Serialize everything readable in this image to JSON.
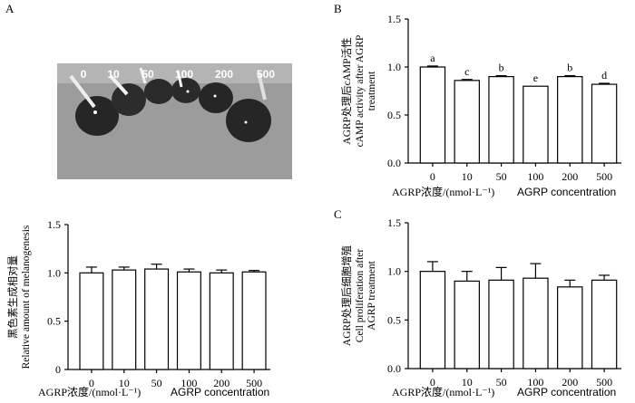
{
  "panel_labels": [
    "A",
    "B",
    "C"
  ],
  "photo": {
    "tube_labels": [
      "0",
      "10",
      "50",
      "100",
      "200",
      "500"
    ],
    "colors": {
      "background": "#9c9c9c",
      "tube_dark": "#222222",
      "tube_rim": "#e8e8e8"
    }
  },
  "chart_data": [
    {
      "id": "A",
      "type": "bar",
      "title": "",
      "ylabel_cn": "黑色素生成相对量",
      "ylabel_en": "Relative amount of melanogenesis",
      "xlabel_cn": "AGRP浓度/(nmol·L⁻¹)",
      "xlabel_en": "AGRP concentration",
      "categories": [
        "0",
        "10",
        "50",
        "100",
        "200",
        "500"
      ],
      "values": [
        1.0,
        1.03,
        1.04,
        1.01,
        1.0,
        1.01
      ],
      "errors": [
        0.06,
        0.03,
        0.05,
        0.03,
        0.03,
        0.015
      ],
      "letters": [],
      "ylim": [
        0,
        1.5
      ],
      "yticks": [
        "0",
        "0.5",
        "1.0",
        "1.5"
      ],
      "grid": false
    },
    {
      "id": "B",
      "type": "bar",
      "title": "",
      "ylabel_cn": "AGRP处理后cAMP活性",
      "ylabel_en": "cAMP activity after AGRP",
      "ylabel_en2": "treatment",
      "xlabel_cn": "AGRP浓度/(nmol·L⁻¹)",
      "xlabel_en": "AGRP concentration",
      "categories": [
        "0",
        "10",
        "50",
        "100",
        "200",
        "500"
      ],
      "values": [
        1.0,
        0.86,
        0.9,
        0.8,
        0.9,
        0.82
      ],
      "errors": [
        0.01,
        0.01,
        0.01,
        0.0,
        0.01,
        0.01
      ],
      "letters": [
        "a",
        "c",
        "b",
        "e",
        "b",
        "d"
      ],
      "ylim": [
        0,
        1.5
      ],
      "yticks": [
        "0.0",
        "0.5",
        "1.0",
        "1.5"
      ],
      "grid": false
    },
    {
      "id": "C",
      "type": "bar",
      "title": "",
      "ylabel_cn": "AGRP处理后细胞增殖",
      "ylabel_en": "Cell proliferation after",
      "ylabel_en2": "AGRP treatment",
      "xlabel_cn": "AGRP浓度/(nmol·L⁻¹)",
      "xlabel_en": "AGRP concentration",
      "categories": [
        "0",
        "10",
        "50",
        "100",
        "200",
        "500"
      ],
      "values": [
        1.0,
        0.9,
        0.91,
        0.93,
        0.84,
        0.91
      ],
      "errors": [
        0.1,
        0.1,
        0.13,
        0.15,
        0.07,
        0.05
      ],
      "letters": [],
      "ylim": [
        0,
        1.5
      ],
      "yticks": [
        "0.0",
        "0.5",
        "1.0",
        "1.5"
      ],
      "grid": false
    }
  ]
}
